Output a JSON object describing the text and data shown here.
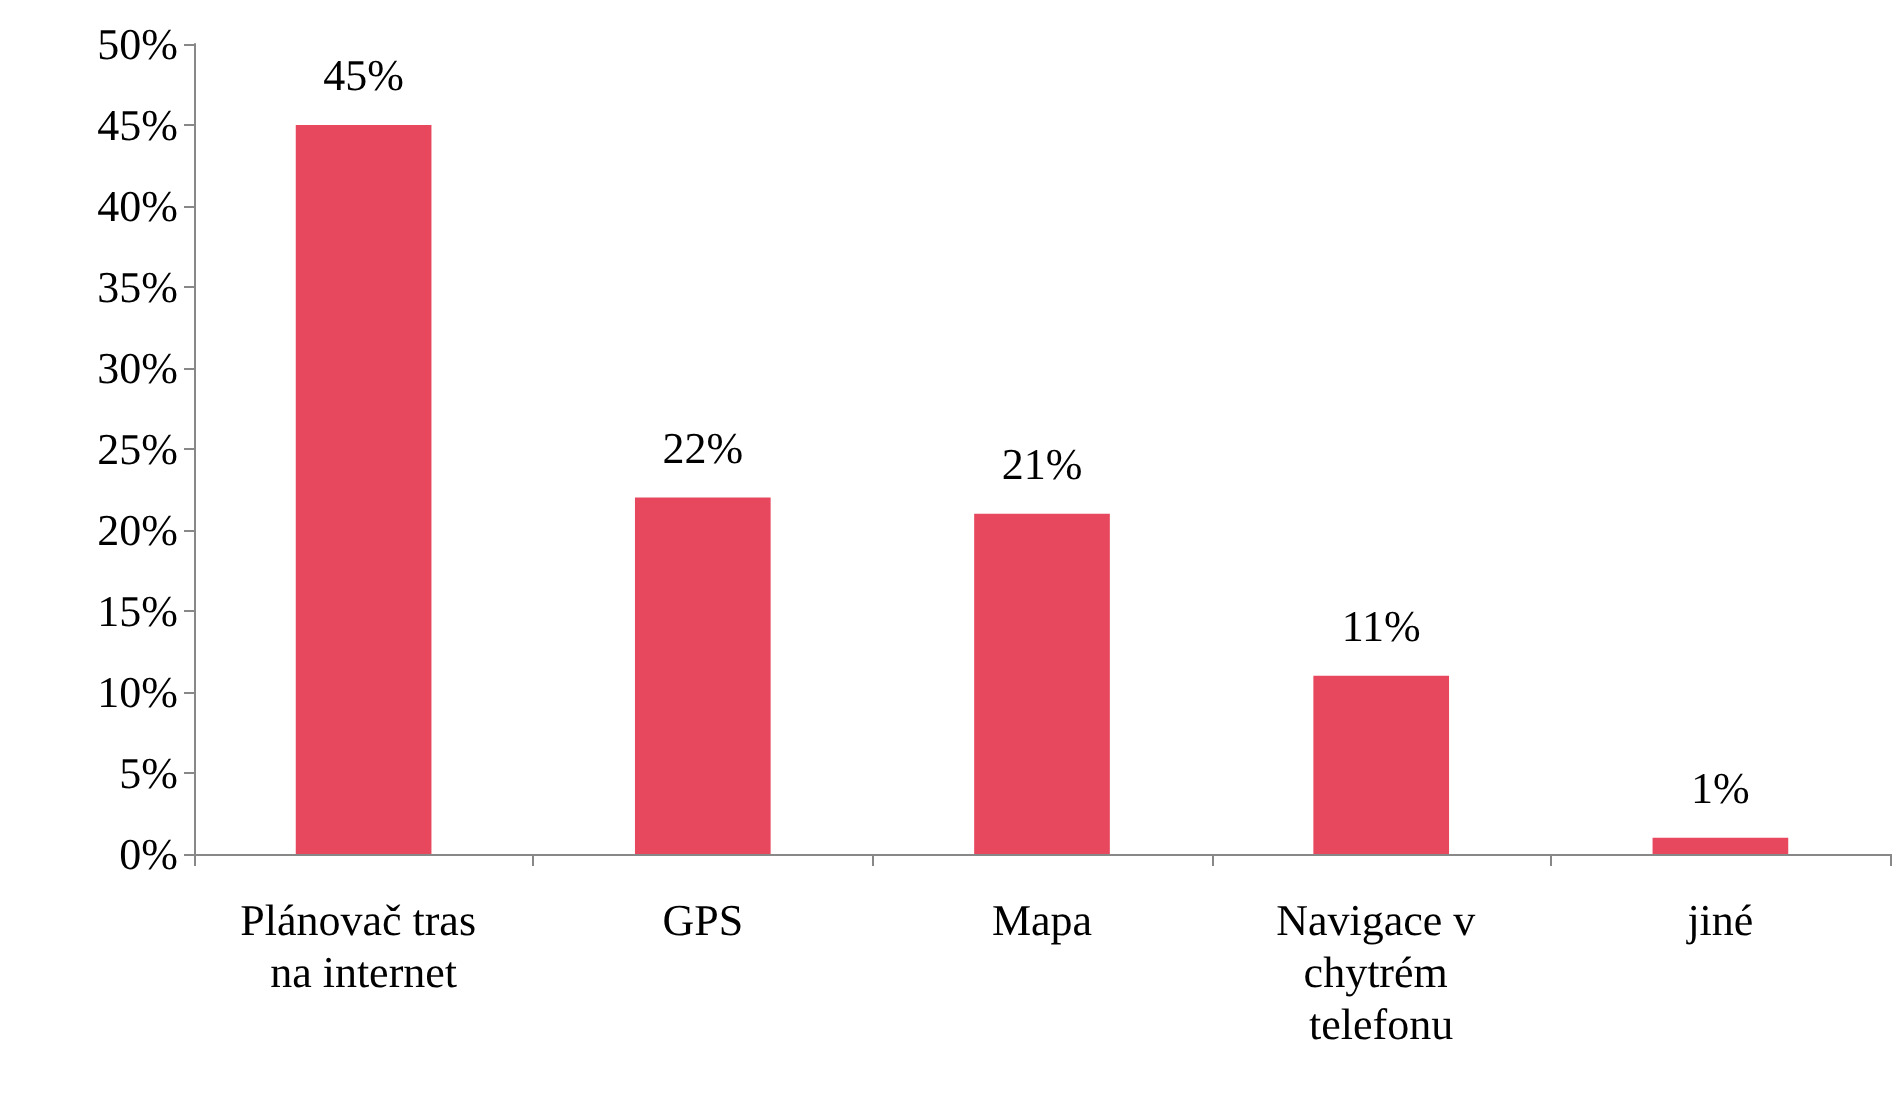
{
  "chart_data": {
    "type": "bar",
    "categories": [
      "Plánovač tras na internet",
      "GPS",
      "Mapa",
      "Navigace v chytrém telefonu",
      "jiné"
    ],
    "values": [
      45,
      22,
      21,
      11,
      1
    ],
    "value_labels": [
      "45%",
      "22%",
      "21%",
      "11%",
      "1%"
    ],
    "color": "#e8485e",
    "ylim": [
      0,
      50
    ],
    "yticks": [
      {
        "value": 0,
        "label": "0%"
      },
      {
        "value": 5,
        "label": "5%"
      },
      {
        "value": 10,
        "label": "10%"
      },
      {
        "value": 15,
        "label": "15%"
      },
      {
        "value": 20,
        "label": "20%"
      },
      {
        "value": 25,
        "label": "25%"
      },
      {
        "value": 30,
        "label": "30%"
      },
      {
        "value": 35,
        "label": "35%"
      },
      {
        "value": 40,
        "label": "40%"
      },
      {
        "value": 45,
        "label": "45%"
      },
      {
        "value": 50,
        "label": "50%"
      }
    ],
    "grid": false
  }
}
